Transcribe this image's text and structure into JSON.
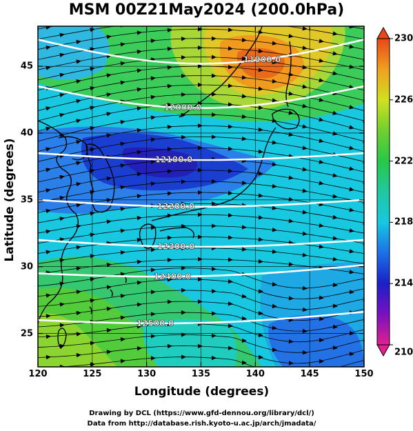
{
  "title": "MSM 00Z21May2024 (200.0hPa)",
  "xlabel": "Longitude (degrees)",
  "ylabel": "Latitude  (degrees)",
  "x_ticks": [
    "120",
    "125",
    "130",
    "135",
    "140",
    "145",
    "150"
  ],
  "y_ticks": [
    "25",
    "30",
    "35",
    "40",
    "45"
  ],
  "colorbar": {
    "ticks": [
      "230",
      "226",
      "222",
      "218",
      "214",
      "210"
    ],
    "min": 210,
    "max": 230,
    "colors": [
      "#e02090",
      "#7a10c0",
      "#1a20c8",
      "#1c70e8",
      "#18c8e0",
      "#20c8a0",
      "#28c848",
      "#70d030",
      "#d0e020",
      "#f0a020",
      "#e84818"
    ]
  },
  "contours": [
    {
      "label": "11900.0",
      "lat": 47.0
    },
    {
      "label": "12000.0",
      "lat": 43.5
    },
    {
      "label": "12100.0",
      "lat": 38.5
    },
    {
      "label": "12200.0",
      "lat": 35.0
    },
    {
      "label": "12300.0",
      "lat": 32.0
    },
    {
      "label": "12400.0",
      "lat": 29.5
    },
    {
      "label": "12500.0",
      "lat": 26.0
    }
  ],
  "map": {
    "lon_range": [
      120,
      150
    ],
    "lat_range": [
      22.5,
      48
    ],
    "grid_lon": [
      125,
      130,
      135,
      140,
      145
    ],
    "grid_lat": [
      25,
      30,
      35,
      40,
      45
    ]
  },
  "credits": [
    "Drawing by DCL (https://www.gfd-dennou.org/library/dcl/)",
    "Data from http://database.rish.kyoto-u.ac.jp/arch/jmadata/"
  ]
}
